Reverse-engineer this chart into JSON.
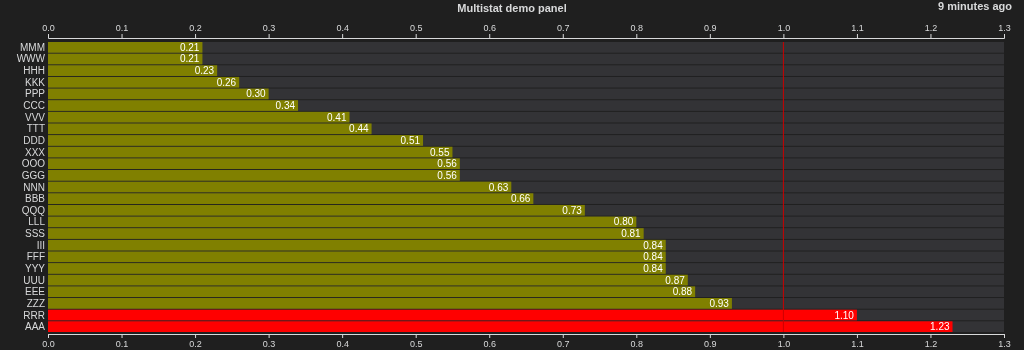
{
  "chart_data": {
    "type": "bar",
    "orientation": "horizontal",
    "title": "Multistat demo panel",
    "annotations": [
      "9 minutes ago"
    ],
    "categories": [
      "MMM",
      "WWW",
      "HHH",
      "KKK",
      "PPP",
      "CCC",
      "VVV",
      "TTT",
      "DDD",
      "XXX",
      "OOO",
      "GGG",
      "NNN",
      "BBB",
      "QQQ",
      "LLL",
      "SSS",
      "III",
      "FFF",
      "YYY",
      "UUU",
      "EEE",
      "ZZZ",
      "RRR",
      "AAA"
    ],
    "values": [
      0.21,
      0.21,
      0.23,
      0.26,
      0.3,
      0.34,
      0.41,
      0.44,
      0.51,
      0.55,
      0.56,
      0.56,
      0.63,
      0.66,
      0.73,
      0.8,
      0.81,
      0.84,
      0.84,
      0.84,
      0.87,
      0.88,
      0.93,
      1.1,
      1.23
    ],
    "value_labels": [
      "0.21",
      "0.21",
      "0.23",
      "0.26",
      "0.30",
      "0.34",
      "0.41",
      "0.44",
      "0.51",
      "0.55",
      "0.56",
      "0.56",
      "0.63",
      "0.66",
      "0.73",
      "0.80",
      "0.81",
      "0.84",
      "0.84",
      "0.84",
      "0.87",
      "0.88",
      "0.93",
      "1.10",
      "1.23"
    ],
    "colors": [
      "#808000",
      "#808000",
      "#808000",
      "#808000",
      "#808000",
      "#808000",
      "#808000",
      "#808000",
      "#808000",
      "#808000",
      "#808000",
      "#808000",
      "#808000",
      "#808000",
      "#808000",
      "#808000",
      "#808000",
      "#808000",
      "#808000",
      "#808000",
      "#808000",
      "#808000",
      "#808000",
      "#ff0000",
      "#ff0000"
    ],
    "xlim": [
      0,
      1.3
    ],
    "xticks": [
      {
        "value": 0,
        "label": "0.0"
      },
      {
        "value": 0.1,
        "label": "0.1"
      },
      {
        "value": 0.2,
        "label": "0.2"
      },
      {
        "value": 0.3,
        "label": "0.3"
      },
      {
        "value": 0.4,
        "label": "0.4"
      },
      {
        "value": 0.5,
        "label": "0.5"
      },
      {
        "value": 0.6,
        "label": "0.6"
      },
      {
        "value": 0.7,
        "label": "0.7"
      },
      {
        "value": 0.8,
        "label": "0.8"
      },
      {
        "value": 0.9,
        "label": "0.9"
      },
      {
        "value": 1,
        "label": "1.0"
      },
      {
        "value": 1.1,
        "label": "1.1"
      },
      {
        "value": 1.2,
        "label": "1.2"
      },
      {
        "value": 1.3,
        "label": "1.3"
      }
    ],
    "x2lim": [
      0,
      1.3
    ],
    "x2ticks": [
      {
        "value": 0,
        "label": "0.0"
      },
      {
        "value": 0.1,
        "label": "0.1"
      },
      {
        "value": 0.2,
        "label": "0.2"
      },
      {
        "value": 0.3,
        "label": "0.3"
      },
      {
        "value": 0.4,
        "label": "0.4"
      },
      {
        "value": 0.5,
        "label": "0.5"
      },
      {
        "value": 0.6,
        "label": "0.6"
      },
      {
        "value": 0.7,
        "label": "0.7"
      },
      {
        "value": 0.8,
        "label": "0.8"
      },
      {
        "value": 0.9,
        "label": "0.9"
      },
      {
        "value": 1,
        "label": "1.0"
      },
      {
        "value": 1.1,
        "label": "1.1"
      },
      {
        "value": 1.2,
        "label": "1.2"
      },
      {
        "value": 1.3,
        "label": "1.3"
      }
    ],
    "ref_lines": [
      {
        "axis": "x",
        "value": 1,
        "color": "#cc0000"
      }
    ]
  }
}
